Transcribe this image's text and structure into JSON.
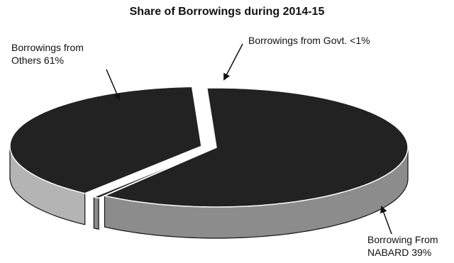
{
  "chart_data": {
    "type": "pie",
    "title": "Share of Borrowings during 2014-15",
    "style": "3d-exploded",
    "slices": [
      {
        "name": "Borrowings from Others",
        "value": 61,
        "label_lines": [
          "Borrowings from",
          "Others 61%"
        ],
        "top_color": "#222222",
        "side_color": "#8c8c8c"
      },
      {
        "name": "Borrowings from Govt.",
        "value": 0.5,
        "label_lines": [
          "Borrowings from Govt. <1%"
        ],
        "top_color": "#222222",
        "side_color": "#8c8c8c"
      },
      {
        "name": "Borrowing From NABARD",
        "value": 39,
        "label_lines": [
          "Borrowing From",
          "NABARD 39%"
        ],
        "top_color": "#222222",
        "side_color": "#b4b4b4"
      }
    ]
  }
}
